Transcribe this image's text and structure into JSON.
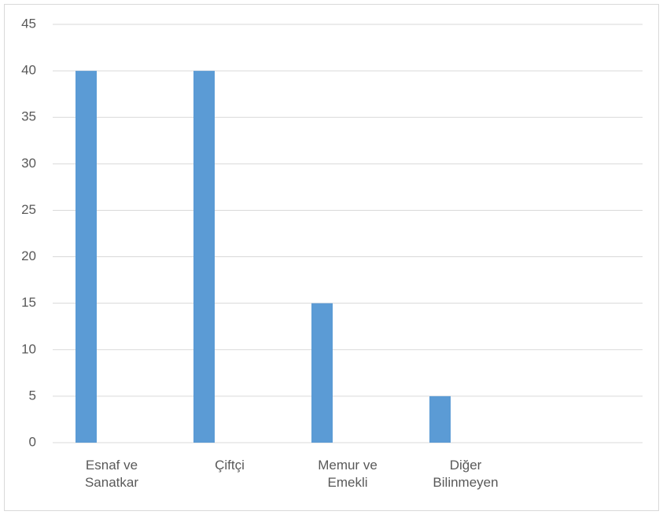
{
  "chart_data": {
    "type": "bar",
    "categories": [
      "Esnaf ve Sanatkar",
      "Çiftçi",
      "Memur ve Emekli",
      "Diğer Bilinmeyen",
      null
    ],
    "values": [
      40,
      40,
      15,
      5,
      null
    ],
    "color": "#5b9bd5",
    "ylim": [
      0,
      45
    ],
    "yticks": [
      0,
      5,
      10,
      15,
      20,
      25,
      30,
      35,
      40,
      45
    ],
    "grid": true
  }
}
